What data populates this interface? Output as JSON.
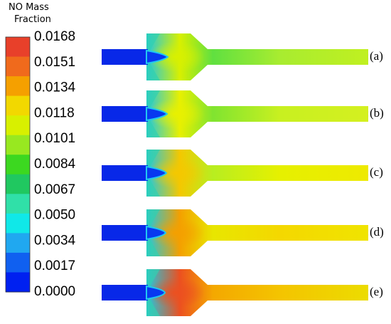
{
  "colorbar": {
    "title": [
      "NO Mass",
      "Fraction"
    ],
    "ticks": [
      "0.0168",
      "0.0151",
      "0.0134",
      "0.0118",
      "0.0101",
      "0.0084",
      "0.0067",
      "0.0050",
      "0.0034",
      "0.0017",
      "0.0000"
    ],
    "colors": [
      "#e8402a",
      "#f06a1c",
      "#f5a000",
      "#f2d800",
      "#d8f000",
      "#98e820",
      "#3cd820",
      "#20c860",
      "#30e0a8",
      "#10e8e8",
      "#20a8f0",
      "#1060f0",
      "#0020f0"
    ]
  },
  "panels": [
    {
      "label": "(a)"
    },
    {
      "label": "(b)"
    },
    {
      "label": "(c)"
    },
    {
      "label": "(d)"
    },
    {
      "label": "(e)"
    }
  ]
}
